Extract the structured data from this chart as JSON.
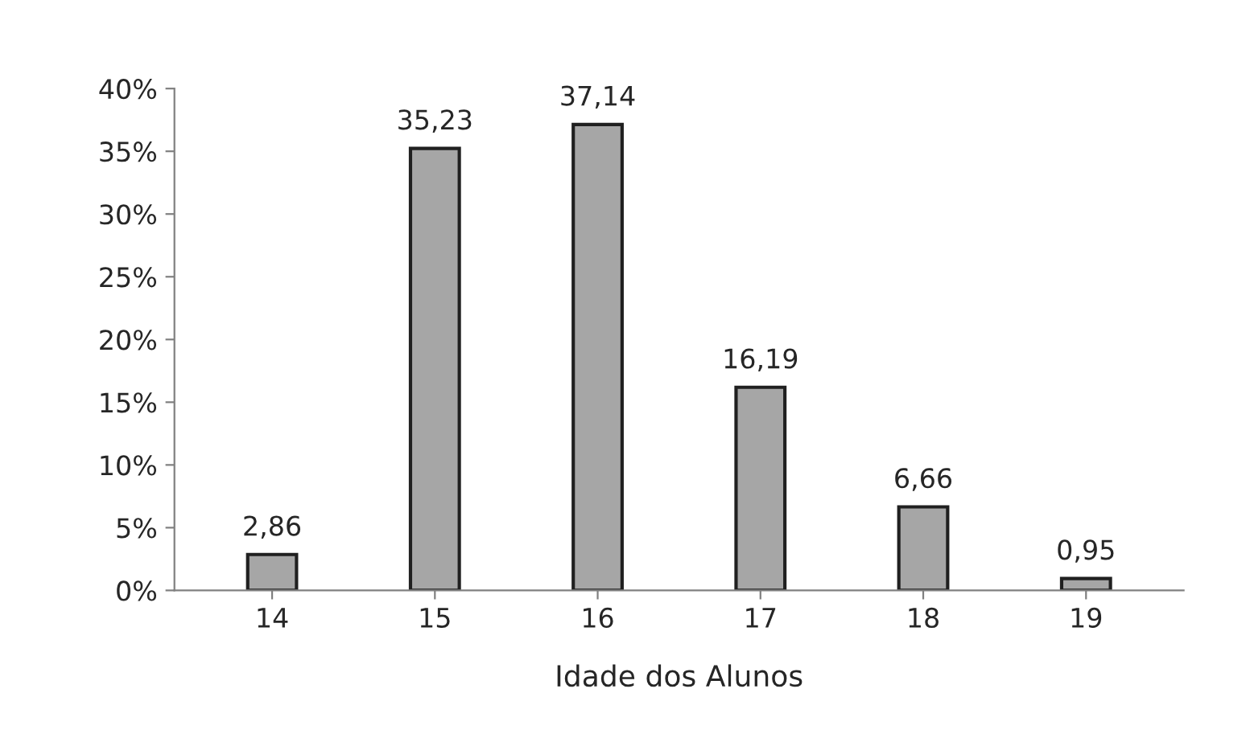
{
  "chart_data": {
    "type": "bar",
    "xlabel": "Idade dos Alunos",
    "categories": [
      "14",
      "15",
      "16",
      "17",
      "18",
      "19"
    ],
    "values": [
      2.86,
      35.23,
      37.14,
      16.19,
      6.66,
      0.95
    ],
    "value_labels": [
      "2,86",
      "35,23",
      "37,14",
      "16,19",
      "6,66",
      "0,95"
    ],
    "color": "#a6a6a6",
    "ylim": [
      0,
      40
    ],
    "yticks": [
      {
        "value": 0,
        "label": "0%"
      },
      {
        "value": 5,
        "label": "5%"
      },
      {
        "value": 10,
        "label": "10%"
      },
      {
        "value": 15,
        "label": "15%"
      },
      {
        "value": 20,
        "label": "20%"
      },
      {
        "value": 25,
        "label": "25%"
      },
      {
        "value": 30,
        "label": "30%"
      },
      {
        "value": 35,
        "label": "35%"
      },
      {
        "value": 40,
        "label": "40%"
      }
    ],
    "grid": false,
    "legend": false
  }
}
